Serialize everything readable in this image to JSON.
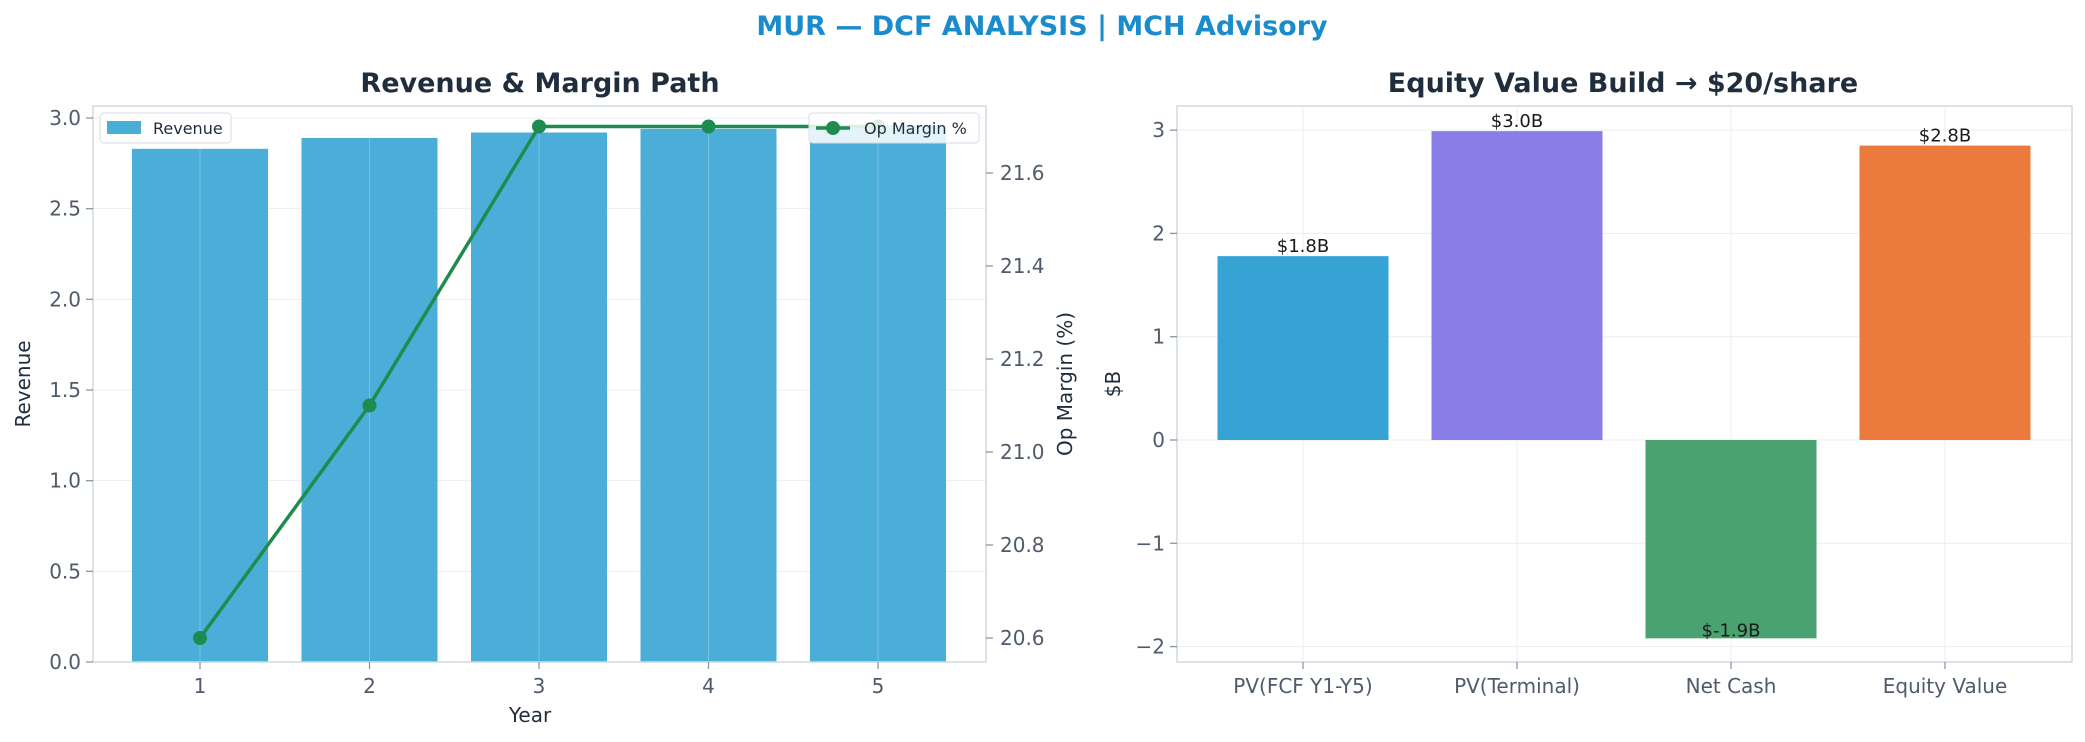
{
  "suptitle": "MUR — DCF ANALYSIS | MCH Advisory",
  "chart_data": [
    {
      "type": "bar",
      "title": "Revenue & Margin Path",
      "xlabel": "Year",
      "ylabel": "Revenue",
      "y2label": "Op Margin (%)",
      "categories": [
        "1",
        "2",
        "3",
        "4",
        "5"
      ],
      "ylim": [
        0,
        3.0
      ],
      "y2lim": [
        20.55,
        21.74
      ],
      "yticks": [
        "0.0",
        "0.5",
        "1.0",
        "1.5",
        "2.0",
        "2.5",
        "3.0"
      ],
      "y2ticks": [
        "20.6",
        "20.8",
        "21.0",
        "21.2",
        "21.4",
        "21.6"
      ],
      "grid": true,
      "series": [
        {
          "name": "Revenue",
          "type": "bar",
          "axis": "left",
          "color": "#4aaed9",
          "values": [
            2.83,
            2.89,
            2.92,
            2.94,
            2.96
          ]
        },
        {
          "name": "Op Margin %",
          "type": "line",
          "axis": "right",
          "color": "#1e8c4e",
          "values": [
            20.6,
            21.1,
            21.7,
            21.7,
            21.7
          ]
        }
      ],
      "legend": [
        {
          "label": "Revenue",
          "placement": "upper left"
        },
        {
          "label": "Op Margin %",
          "placement": "upper right"
        }
      ]
    },
    {
      "type": "bar",
      "title": "Equity Value Build → $20/share",
      "xlabel": "",
      "ylabel": "$B",
      "categories": [
        "PV(FCF Y1-Y5)",
        "PV(Terminal)",
        "Net Cash",
        "Equity Value"
      ],
      "values": [
        1.78,
        2.99,
        -1.92,
        2.85
      ],
      "data_labels": [
        "$1.8B",
        "$3.0B",
        "$-1.9B",
        "$2.8B"
      ],
      "colors": [
        "#36a3d4",
        "#8a7de8",
        "#4aa270",
        "#ec7a3d"
      ],
      "ylim": [
        -2.2,
        3.2
      ],
      "yticks": [
        "−2",
        "−1",
        "0",
        "1",
        "2",
        "3"
      ],
      "grid": true
    }
  ]
}
